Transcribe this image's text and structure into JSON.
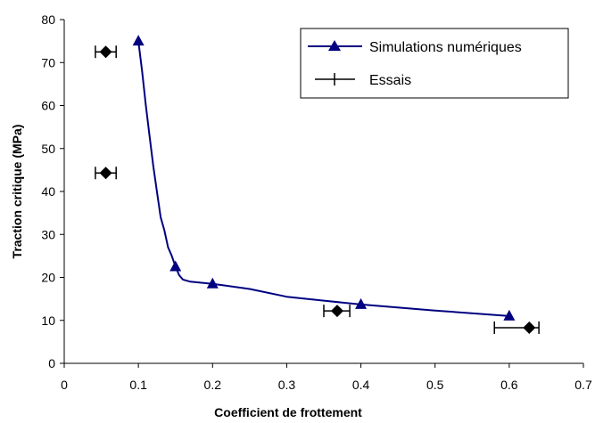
{
  "chart_data": {
    "type": "scatter",
    "xlabel": "Coefficient de frottement",
    "ylabel": "Traction critique (MPa)",
    "xlim": [
      0,
      0.7
    ],
    "ylim": [
      0,
      80
    ],
    "xticks": [
      "0",
      "0.1",
      "0.2",
      "0.3",
      "0.4",
      "0.5",
      "0.6",
      "0.7"
    ],
    "yticks": [
      "0",
      "10",
      "20",
      "30",
      "40",
      "50",
      "60",
      "70",
      "80"
    ],
    "grid": false,
    "legend_position": "top-right",
    "series": [
      {
        "name": "Simulations numériques",
        "kind": "line-with-markers",
        "color": "#000080",
        "marker": "triangle",
        "points": [
          [
            0.1,
            75
          ],
          [
            0.15,
            22.5
          ],
          [
            0.2,
            18.5
          ],
          [
            0.4,
            13.7
          ],
          [
            0.6,
            11
          ]
        ],
        "curve": [
          [
            0.1,
            75
          ],
          [
            0.105,
            68
          ],
          [
            0.11,
            60
          ],
          [
            0.115,
            53
          ],
          [
            0.12,
            46
          ],
          [
            0.125,
            40
          ],
          [
            0.13,
            34
          ],
          [
            0.135,
            31
          ],
          [
            0.14,
            27
          ],
          [
            0.145,
            25
          ],
          [
            0.15,
            22.5
          ],
          [
            0.155,
            20.5
          ],
          [
            0.16,
            19.5
          ],
          [
            0.17,
            19
          ],
          [
            0.2,
            18.5
          ],
          [
            0.25,
            17.3
          ],
          [
            0.3,
            15.5
          ],
          [
            0.35,
            14.6
          ],
          [
            0.4,
            13.7
          ],
          [
            0.5,
            12.3
          ],
          [
            0.6,
            11
          ]
        ]
      },
      {
        "name": "Essais",
        "kind": "points-with-x-error",
        "color": "#000000",
        "marker": "diamond",
        "points": [
          {
            "x": 0.056,
            "y": 72.5,
            "xmin": 0.042,
            "xmax": 0.07
          },
          {
            "x": 0.056,
            "y": 44.3,
            "xmin": 0.042,
            "xmax": 0.07
          },
          {
            "x": 0.368,
            "y": 12.2,
            "xmin": 0.35,
            "xmax": 0.385
          },
          {
            "x": 0.627,
            "y": 8.3,
            "xmin": 0.58,
            "xmax": 0.64
          }
        ]
      }
    ]
  }
}
